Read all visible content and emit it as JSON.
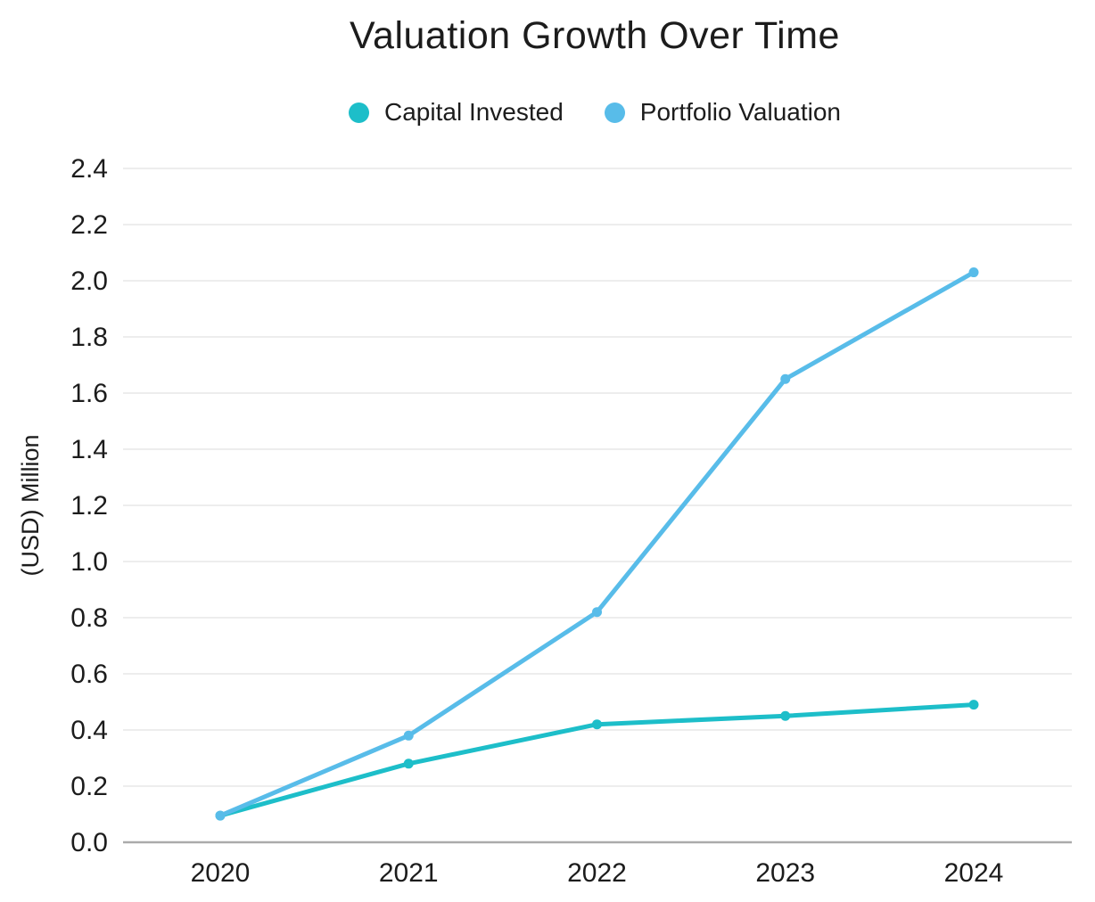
{
  "chart_data": {
    "type": "line",
    "title": "Valuation Growth Over Time",
    "categories": [
      "2020",
      "2021",
      "2022",
      "2023",
      "2024"
    ],
    "series": [
      {
        "name": "Capital Invested",
        "color": "#1dbec9",
        "values": [
          0.095,
          0.28,
          0.42,
          0.45,
          0.49
        ]
      },
      {
        "name": "Portfolio Valuation",
        "color": "#58bce9",
        "values": [
          0.095,
          0.38,
          0.82,
          1.65,
          2.03
        ]
      }
    ],
    "xlabel": "",
    "ylabel": "(USD) Million",
    "ylim": [
      0.0,
      2.4
    ],
    "ytick_step": 0.2,
    "ytick_decimals": 1,
    "grid": true,
    "legend_position": "top",
    "background_color": "#ffffff",
    "gridline_color": "#e7e7e7",
    "axis_line_color": "#ababab",
    "text_color": "#1c1c1c"
  }
}
